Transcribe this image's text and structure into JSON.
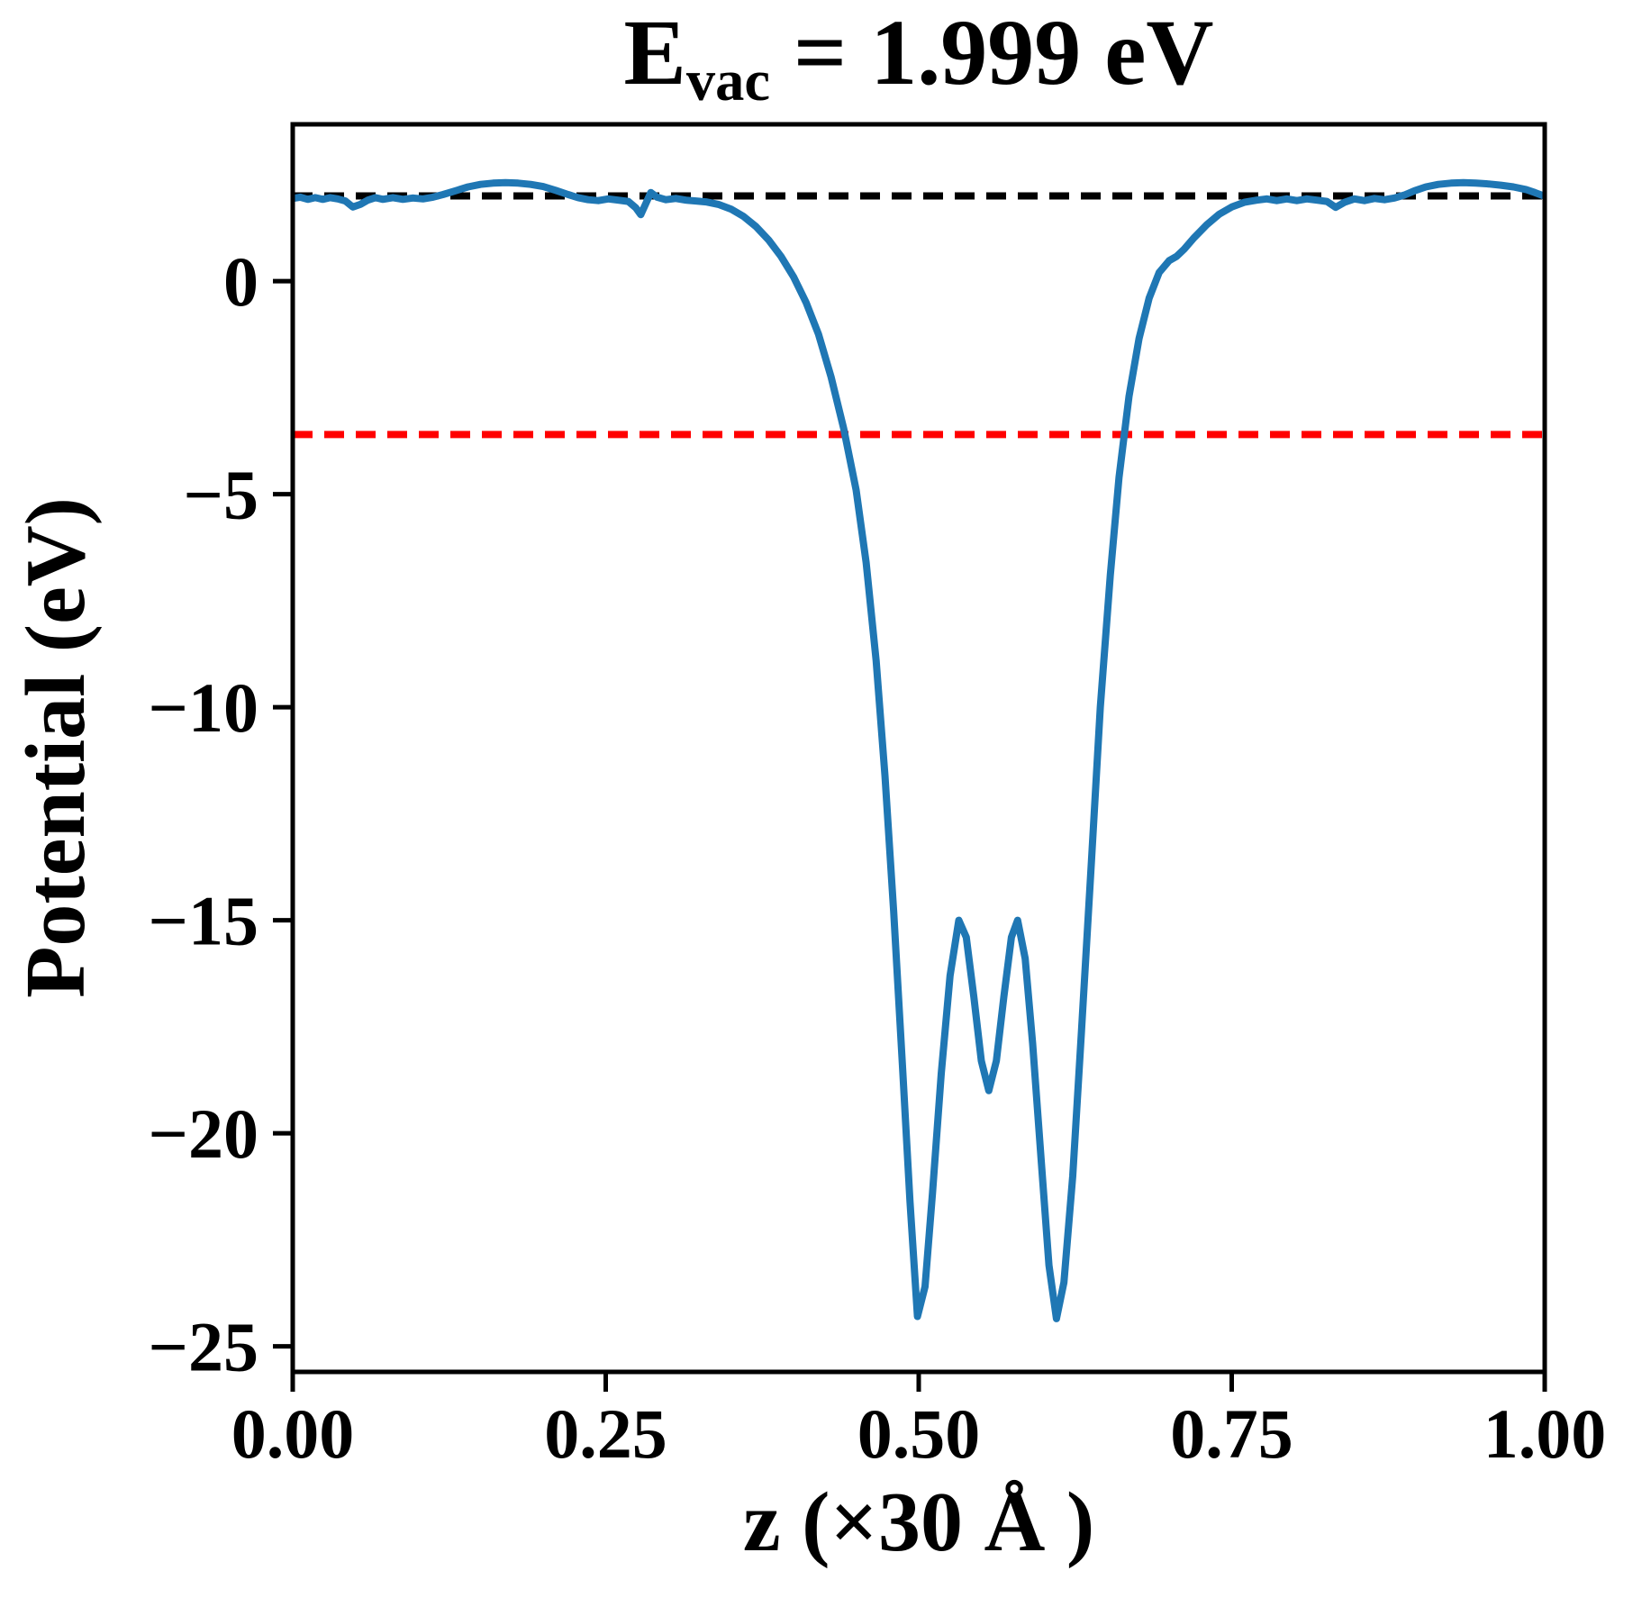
{
  "title": {
    "symbol": "E",
    "subscript": "vac",
    "rest": " = 1.999 eV"
  },
  "chart_data": {
    "type": "line",
    "title": "E_vac = 1.999 eV",
    "xlabel": "z (×30 Å )",
    "ylabel": "Potential (eV)",
    "xlim": [
      0,
      1
    ],
    "ylim": [
      -25.6,
      3.68
    ],
    "grid": false,
    "legend": null,
    "x_ticks": [
      {
        "v": 0.0,
        "label": "0.00"
      },
      {
        "v": 0.25,
        "label": "0.25"
      },
      {
        "v": 0.5,
        "label": "0.50"
      },
      {
        "v": 0.75,
        "label": "0.75"
      },
      {
        "v": 1.0,
        "label": "1.00"
      }
    ],
    "y_ticks": [
      {
        "v": 0,
        "label": "0"
      },
      {
        "v": -5,
        "label": "−5"
      },
      {
        "v": -10,
        "label": "−10"
      },
      {
        "v": -15,
        "label": "−15"
      },
      {
        "v": -20,
        "label": "−20"
      },
      {
        "v": -25,
        "label": "−25"
      }
    ],
    "reference_lines": [
      {
        "name": "vacuum-level-line",
        "y": 1.999,
        "color": "#000000",
        "style": "dashed"
      },
      {
        "name": "reference-level-line",
        "y": -3.6,
        "color": "#ff0000",
        "style": "dashed"
      }
    ],
    "series": [
      {
        "name": "planar-averaged-potential",
        "color": "#1f77b4",
        "points": [
          [
            0.0,
            1.94
          ],
          [
            0.006,
            1.97
          ],
          [
            0.012,
            1.92
          ],
          [
            0.018,
            1.96
          ],
          [
            0.024,
            1.92
          ],
          [
            0.03,
            1.96
          ],
          [
            0.036,
            1.93
          ],
          [
            0.042,
            1.88
          ],
          [
            0.048,
            1.74
          ],
          [
            0.054,
            1.8
          ],
          [
            0.06,
            1.9
          ],
          [
            0.066,
            1.96
          ],
          [
            0.072,
            1.92
          ],
          [
            0.08,
            1.96
          ],
          [
            0.088,
            1.92
          ],
          [
            0.096,
            1.95
          ],
          [
            0.104,
            1.93
          ],
          [
            0.112,
            1.97
          ],
          [
            0.12,
            2.03
          ],
          [
            0.13,
            2.12
          ],
          [
            0.14,
            2.21
          ],
          [
            0.15,
            2.27
          ],
          [
            0.16,
            2.3
          ],
          [
            0.17,
            2.31
          ],
          [
            0.18,
            2.3
          ],
          [
            0.19,
            2.27
          ],
          [
            0.2,
            2.22
          ],
          [
            0.21,
            2.13
          ],
          [
            0.22,
            2.03
          ],
          [
            0.228,
            1.96
          ],
          [
            0.236,
            1.91
          ],
          [
            0.244,
            1.89
          ],
          [
            0.252,
            1.93
          ],
          [
            0.26,
            1.9
          ],
          [
            0.268,
            1.87
          ],
          [
            0.274,
            1.72
          ],
          [
            0.278,
            1.56
          ],
          [
            0.282,
            1.82
          ],
          [
            0.286,
            2.08
          ],
          [
            0.291,
            1.97
          ],
          [
            0.298,
            1.91
          ],
          [
            0.306,
            1.94
          ],
          [
            0.314,
            1.9
          ],
          [
            0.322,
            1.88
          ],
          [
            0.33,
            1.86
          ],
          [
            0.34,
            1.8
          ],
          [
            0.35,
            1.69
          ],
          [
            0.36,
            1.52
          ],
          [
            0.37,
            1.28
          ],
          [
            0.38,
            0.97
          ],
          [
            0.39,
            0.58
          ],
          [
            0.4,
            0.1
          ],
          [
            0.41,
            -0.5
          ],
          [
            0.42,
            -1.25
          ],
          [
            0.43,
            -2.25
          ],
          [
            0.44,
            -3.45
          ],
          [
            0.45,
            -4.9
          ],
          [
            0.458,
            -6.6
          ],
          [
            0.466,
            -8.9
          ],
          [
            0.473,
            -11.6
          ],
          [
            0.48,
            -14.8
          ],
          [
            0.487,
            -18.4
          ],
          [
            0.493,
            -21.6
          ],
          [
            0.499,
            -24.3
          ],
          [
            0.505,
            -23.6
          ],
          [
            0.511,
            -21.4
          ],
          [
            0.518,
            -18.6
          ],
          [
            0.525,
            -16.3
          ],
          [
            0.532,
            -15.0
          ],
          [
            0.538,
            -15.4
          ],
          [
            0.544,
            -16.8
          ],
          [
            0.55,
            -18.3
          ],
          [
            0.556,
            -19.0
          ],
          [
            0.562,
            -18.3
          ],
          [
            0.568,
            -16.8
          ],
          [
            0.574,
            -15.4
          ],
          [
            0.579,
            -15.0
          ],
          [
            0.585,
            -15.9
          ],
          [
            0.591,
            -17.9
          ],
          [
            0.598,
            -20.7
          ],
          [
            0.604,
            -23.1
          ],
          [
            0.61,
            -24.35
          ],
          [
            0.616,
            -23.5
          ],
          [
            0.623,
            -21.0
          ],
          [
            0.63,
            -17.6
          ],
          [
            0.638,
            -13.6
          ],
          [
            0.645,
            -10.0
          ],
          [
            0.653,
            -6.9
          ],
          [
            0.66,
            -4.6
          ],
          [
            0.668,
            -2.7
          ],
          [
            0.676,
            -1.35
          ],
          [
            0.684,
            -0.4
          ],
          [
            0.692,
            0.2
          ],
          [
            0.7,
            0.48
          ],
          [
            0.706,
            0.58
          ],
          [
            0.712,
            0.75
          ],
          [
            0.72,
            1.02
          ],
          [
            0.73,
            1.32
          ],
          [
            0.74,
            1.57
          ],
          [
            0.75,
            1.74
          ],
          [
            0.76,
            1.85
          ],
          [
            0.77,
            1.9
          ],
          [
            0.778,
            1.93
          ],
          [
            0.786,
            1.89
          ],
          [
            0.794,
            1.93
          ],
          [
            0.802,
            1.89
          ],
          [
            0.81,
            1.93
          ],
          [
            0.818,
            1.9
          ],
          [
            0.826,
            1.87
          ],
          [
            0.833,
            1.73
          ],
          [
            0.84,
            1.85
          ],
          [
            0.848,
            1.93
          ],
          [
            0.856,
            1.89
          ],
          [
            0.864,
            1.94
          ],
          [
            0.872,
            1.91
          ],
          [
            0.88,
            1.95
          ],
          [
            0.888,
            2.02
          ],
          [
            0.896,
            2.12
          ],
          [
            0.905,
            2.21
          ],
          [
            0.915,
            2.27
          ],
          [
            0.925,
            2.3
          ],
          [
            0.935,
            2.31
          ],
          [
            0.945,
            2.3
          ],
          [
            0.955,
            2.28
          ],
          [
            0.965,
            2.25
          ],
          [
            0.975,
            2.21
          ],
          [
            0.985,
            2.15
          ],
          [
            0.992,
            2.08
          ],
          [
            1.0,
            1.99
          ]
        ]
      }
    ]
  },
  "colors": {
    "curve": "#1f77b4",
    "vacuum_line": "#000000",
    "reference_line": "#ff0000",
    "axis": "#000000",
    "background": "#ffffff"
  }
}
